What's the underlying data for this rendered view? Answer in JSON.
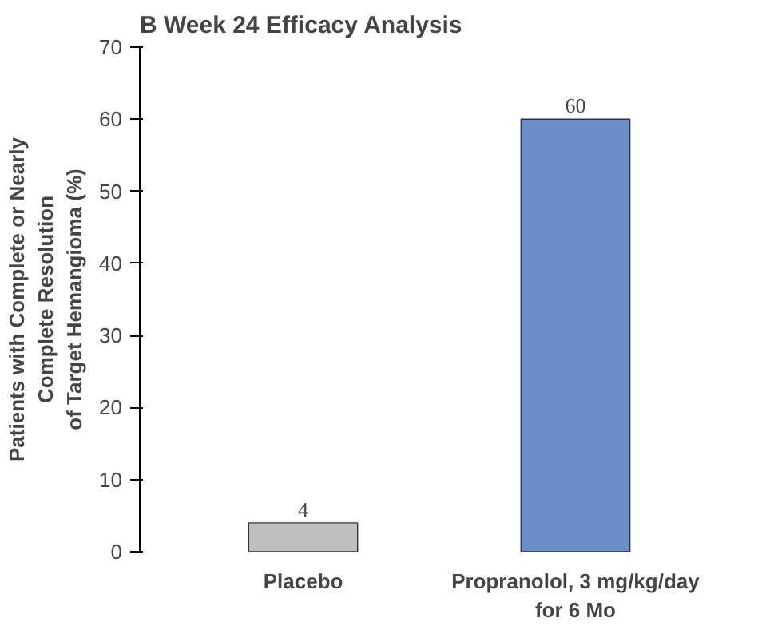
{
  "chart_data": {
    "type": "bar",
    "title": "B  Week 24 Efficacy Analysis",
    "ylabel": "Patients with Complete or Nearly\nComplete Resolution\nof Target Hemangioma (%)",
    "categories": [
      "Placebo",
      "Propranolol, 3 mg/kg/day\nfor 6 Mo"
    ],
    "values": [
      4,
      60
    ],
    "colors": [
      "#c0c0c0",
      "#6a8ec8"
    ],
    "ylim": [
      0,
      70
    ],
    "yticks": [
      0,
      10,
      20,
      30,
      40,
      50,
      60,
      70
    ],
    "grid": false,
    "data_labels": true
  }
}
